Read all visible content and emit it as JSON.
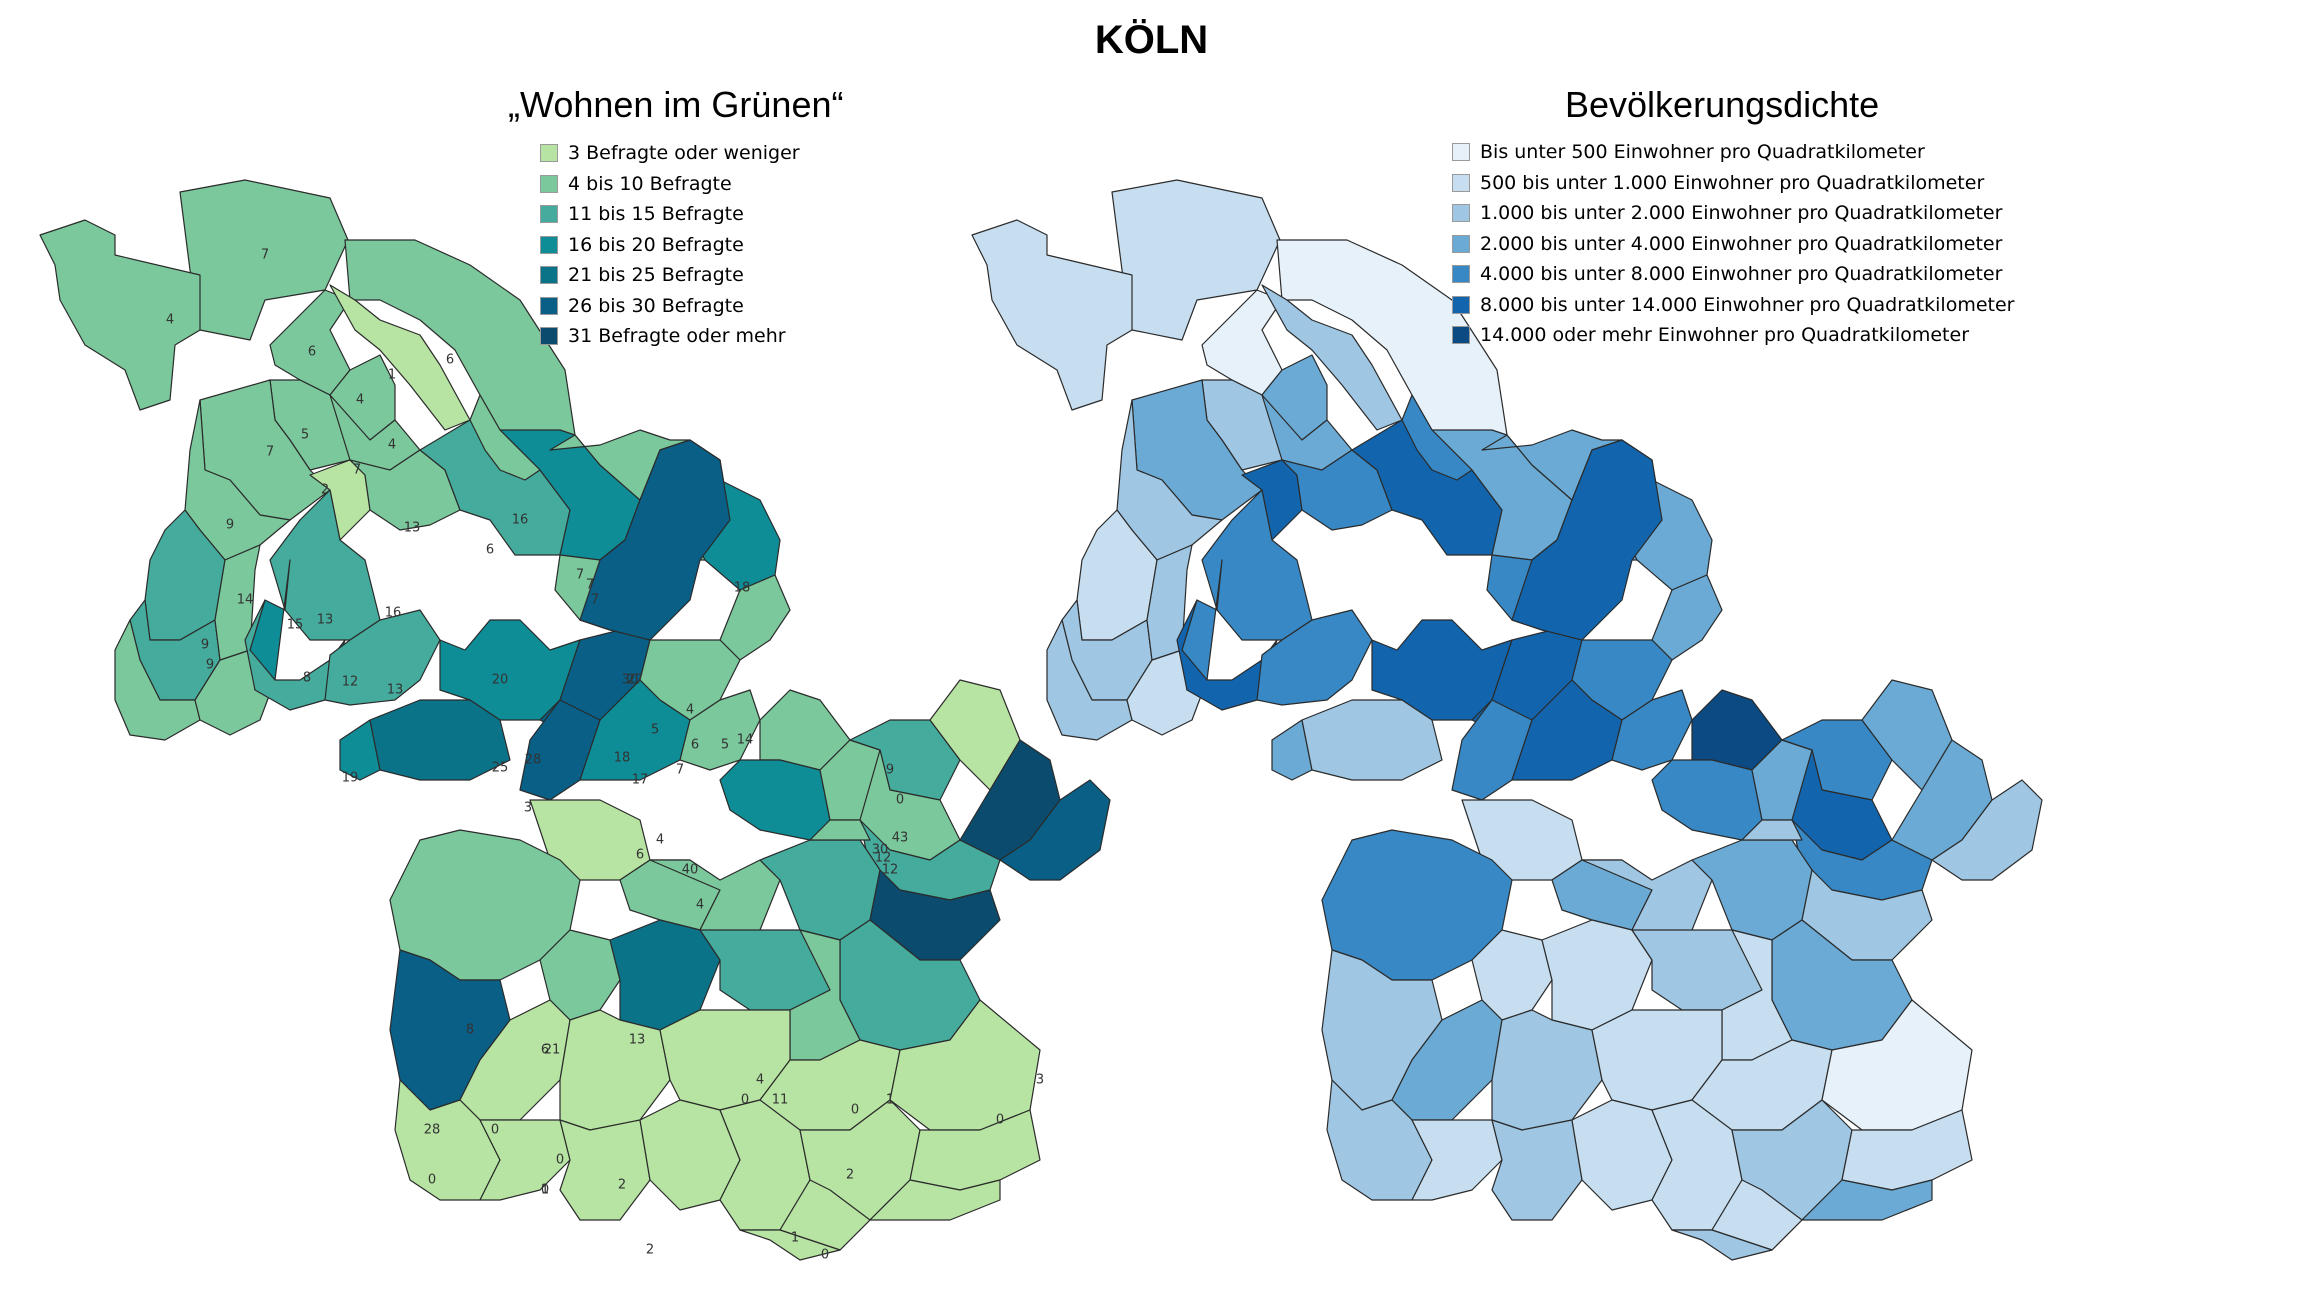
{
  "page_title": "KÖLN",
  "maps": [
    {
      "title": "„Wohnen im Grünen“",
      "legend": [
        {
          "label": "3 Befragte oder weniger",
          "color": "#b7e4a3"
        },
        {
          "label": "4 bis 10 Befragte",
          "color": "#7ac89b"
        },
        {
          "label": "11 bis 15 Befragte",
          "color": "#45ab9c"
        },
        {
          "label": "16 bis 20 Befragte",
          "color": "#0f8d97"
        },
        {
          "label": "21 bis 25 Befragte",
          "color": "#0b7388"
        },
        {
          "label": "26 bis 30 Befragte",
          "color": "#095f86"
        },
        {
          "label": "31 Befragte oder mehr",
          "color": "#0b4c6e"
        }
      ],
      "district_values": [
        "7",
        "4",
        "6",
        "6",
        "1",
        "4",
        "5",
        "4",
        "7",
        "2",
        "9",
        "7",
        "13",
        "16",
        "6",
        "14",
        "7",
        "15",
        "7",
        "9",
        "13",
        "7",
        "18",
        "9",
        "16",
        "8",
        "12",
        "13",
        "20",
        "30",
        "27",
        "4",
        "5",
        "19",
        "25",
        "28",
        "18",
        "7",
        "6",
        "17",
        "5",
        "14",
        "9",
        "0",
        "12",
        "43",
        "30",
        "3",
        "4",
        "6",
        "12",
        "40",
        "4",
        "8",
        "6",
        "21",
        "13",
        "11",
        "4",
        "28",
        "0",
        "0",
        "0",
        "0",
        "0",
        "0",
        "1",
        "2",
        "2",
        "2",
        "0",
        "3",
        "1",
        "1",
        "0",
        "3",
        "3",
        "0",
        "0",
        "3",
        "1"
      ]
    },
    {
      "title": "Bevölkerungsdichte",
      "legend": [
        {
          "label": "Bis unter 500 Einwohner pro Quadratkilometer",
          "color": "#e6f1f9"
        },
        {
          "label": "500 bis unter 1.000 Einwohner pro Quadratkilometer",
          "color": "#c6def0"
        },
        {
          "label": "1.000 bis unter 2.000 Einwohner pro Quadratkilometer",
          "color": "#9fc6e2"
        },
        {
          "label": "2.000 bis unter 4.000 Einwohner pro Quadratkilometer",
          "color": "#6aaad4"
        },
        {
          "label": "4.000 bis unter 8.000 Einwohner pro Quadratkilometer",
          "color": "#3788c4"
        },
        {
          "label": "8.000 bis unter 14.000 Einwohner pro Quadratkilometer",
          "color": "#1265ad"
        },
        {
          "label": "14.000 oder mehr Einwohner pro Quadratkilometer",
          "color": "#0b4a82"
        }
      ]
    }
  ]
}
